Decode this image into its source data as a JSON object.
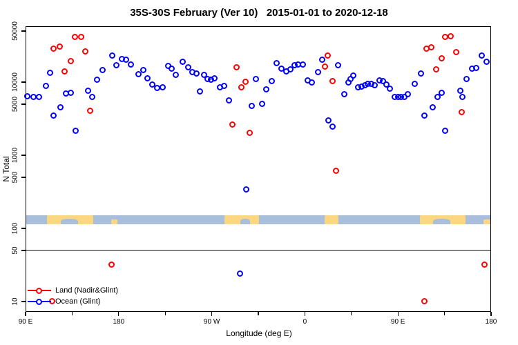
{
  "title": "35S-30S February (Ver 10)   2015-01-01 to 2020-12-18",
  "x_axis": {
    "label": "Longitude (deg E)",
    "range_wrapped_deg_e": [
      90,
      540
    ],
    "major_ticks": [
      {
        "lon": 90,
        "label": "90 E"
      },
      {
        "lon": 180,
        "label": "180"
      },
      {
        "lon": 270,
        "label": "90 W"
      },
      {
        "lon": 360,
        "label": "0"
      },
      {
        "lon": 450,
        "label": "90 E"
      },
      {
        "lon": 540,
        "label": "180"
      }
    ],
    "minor_tick_lons": [
      135,
      225,
      315,
      405,
      495
    ]
  },
  "y_axis": {
    "label": "N Total",
    "scale": "log",
    "ticks": [
      {
        "value": 10,
        "label": "10"
      },
      {
        "value": 50,
        "label": "50"
      },
      {
        "value": 100,
        "label": "100"
      },
      {
        "value": 500,
        "label": "500"
      },
      {
        "value": 1000,
        "label": "1000"
      },
      {
        "value": 5000,
        "label": "5000"
      },
      {
        "value": 10000,
        "label": "10000"
      },
      {
        "value": 50000,
        "label": "50000"
      }
    ]
  },
  "reference_line": {
    "value": 50,
    "color": "#808080"
  },
  "legend": {
    "items": [
      {
        "label": "Land (Nadir&Glint)",
        "color": "#ff0000"
      },
      {
        "label": "Ocean (Glint)",
        "color": "#0000ff"
      }
    ]
  },
  "map_strip": {
    "ocean_color": "#a9bedb",
    "land_color": "#fbd781",
    "land_patches_lon": [
      {
        "name": "australia",
        "from": 111,
        "to": 155.5,
        "full_height": true
      },
      {
        "name": "new-zealand",
        "from": 172.5,
        "to": 179,
        "full_height": false
      },
      {
        "name": "south-america",
        "from": 282.5,
        "to": 316,
        "full_height": true
      },
      {
        "name": "south-africa",
        "from": 379,
        "to": 392.5,
        "full_height": true
      },
      {
        "name": "australia-repeat",
        "from": 471,
        "to": 515.5,
        "full_height": true
      },
      {
        "name": "new-zealand-repeat",
        "from": 532.5,
        "to": 539,
        "full_height": false
      }
    ],
    "ocean_inlets_lon": [
      {
        "name": "great-australian-bight",
        "from": 124,
        "to": 140.5
      },
      {
        "name": "rio-de-la-plata",
        "from": 297.5,
        "to": 307
      },
      {
        "name": "great-australian-bight-repeat",
        "from": 484,
        "to": 500.5
      }
    ]
  },
  "chart_data": {
    "type": "scatter",
    "title": "35S-30S February (Ver 10)   2015-01-01 to 2020-12-18",
    "xlabel": "Longitude (deg E)",
    "ylabel": "N Total",
    "x_range": [
      90,
      540
    ],
    "y_log_range": [
      7,
      60000
    ],
    "legend_position": "bottom-left",
    "series": [
      {
        "name": "Land (Nadir&Glint)",
        "color": "#ff0000",
        "points_lon_n": [
          [
            117,
            28600
          ],
          [
            123,
            30300
          ],
          [
            128,
            14000
          ],
          [
            133.5,
            19300
          ],
          [
            138,
            41300
          ],
          [
            144,
            41300
          ],
          [
            148,
            26000
          ],
          [
            152.5,
            4080
          ],
          [
            115.5,
            10
          ],
          [
            173.5,
            32
          ],
          [
            290,
            2600
          ],
          [
            294,
            15800
          ],
          [
            299,
            8550
          ],
          [
            303,
            10000
          ],
          [
            307,
            2030
          ],
          [
            379.5,
            16400
          ],
          [
            382,
            23200
          ],
          [
            387,
            10200
          ],
          [
            390,
            610
          ],
          [
            475.5,
            10
          ],
          [
            477.5,
            28500
          ],
          [
            482.5,
            30000
          ],
          [
            487,
            15000
          ],
          [
            492,
            21300
          ],
          [
            496,
            41000
          ],
          [
            501,
            42500
          ],
          [
            506.5,
            25500
          ],
          [
            511.5,
            3900
          ],
          [
            533.5,
            32
          ]
        ]
      },
      {
        "name": "Ocean (Glint)",
        "color": "#0000ff",
        "points_lon_n": [
          [
            92,
            6460
          ],
          [
            98,
            6200
          ],
          [
            103,
            6200
          ],
          [
            109.5,
            8900
          ],
          [
            113.5,
            13500
          ],
          [
            117,
            3450
          ],
          [
            124,
            4550
          ],
          [
            129,
            6950
          ],
          [
            133.5,
            7100
          ],
          [
            138.5,
            2160
          ],
          [
            150.5,
            7600
          ],
          [
            154.5,
            6200
          ],
          [
            159,
            10800
          ],
          [
            164.5,
            14700
          ],
          [
            174,
            23000
          ],
          [
            178,
            16900
          ],
          [
            183.5,
            20600
          ],
          [
            187.5,
            20000
          ],
          [
            192,
            17300
          ],
          [
            199,
            12900
          ],
          [
            204,
            14500
          ],
          [
            208,
            11300
          ],
          [
            212.5,
            9200
          ],
          [
            217,
            8350
          ],
          [
            222.5,
            8400
          ],
          [
            228,
            16500
          ],
          [
            231.5,
            15200
          ],
          [
            235,
            12500
          ],
          [
            242,
            19000
          ],
          [
            247.5,
            15800
          ],
          [
            251.5,
            13600
          ],
          [
            255,
            13100
          ],
          [
            258.5,
            7500
          ],
          [
            262.5,
            12400
          ],
          [
            266,
            11000
          ],
          [
            269,
            10700
          ],
          [
            272.5,
            11300
          ],
          [
            278,
            8550
          ],
          [
            282,
            8800
          ],
          [
            287,
            5600
          ],
          [
            297.5,
            24
          ],
          [
            303.5,
            340
          ],
          [
            308.5,
            4750
          ],
          [
            312.5,
            11000
          ],
          [
            318.5,
            5050
          ],
          [
            322.5,
            7900
          ],
          [
            328,
            10200
          ],
          [
            333,
            18200
          ],
          [
            337.5,
            15200
          ],
          [
            342,
            14100
          ],
          [
            346,
            14900
          ],
          [
            350,
            16900
          ],
          [
            353.5,
            17400
          ],
          [
            358,
            17500
          ],
          [
            363,
            10600
          ],
          [
            367,
            9800
          ],
          [
            372.5,
            13700
          ],
          [
            377,
            20300
          ],
          [
            383,
            2960
          ],
          [
            387,
            2440
          ],
          [
            392.5,
            16900
          ],
          [
            398,
            6800
          ],
          [
            402,
            9800
          ],
          [
            404.5,
            11000
          ],
          [
            407,
            12200
          ],
          [
            411.5,
            8500
          ],
          [
            415,
            8750
          ],
          [
            418,
            9050
          ],
          [
            421,
            9450
          ],
          [
            424.5,
            9450
          ],
          [
            427.5,
            9050
          ],
          [
            432,
            10600
          ],
          [
            435.5,
            10300
          ],
          [
            439,
            9200
          ],
          [
            442,
            8100
          ],
          [
            447,
            6200
          ],
          [
            450,
            6300
          ],
          [
            453,
            6300
          ],
          [
            456.5,
            6300
          ],
          [
            459.5,
            6800
          ],
          [
            466.5,
            9450
          ],
          [
            472.5,
            13100
          ],
          [
            475.5,
            3450
          ],
          [
            483.5,
            4550
          ],
          [
            488,
            6300
          ],
          [
            492,
            7150
          ],
          [
            496,
            2160
          ],
          [
            510.5,
            7600
          ],
          [
            512.5,
            6200
          ],
          [
            516.5,
            11000
          ],
          [
            521.5,
            15100
          ],
          [
            525.5,
            15700
          ],
          [
            531,
            23000
          ],
          [
            536,
            19000
          ]
        ]
      }
    ]
  }
}
